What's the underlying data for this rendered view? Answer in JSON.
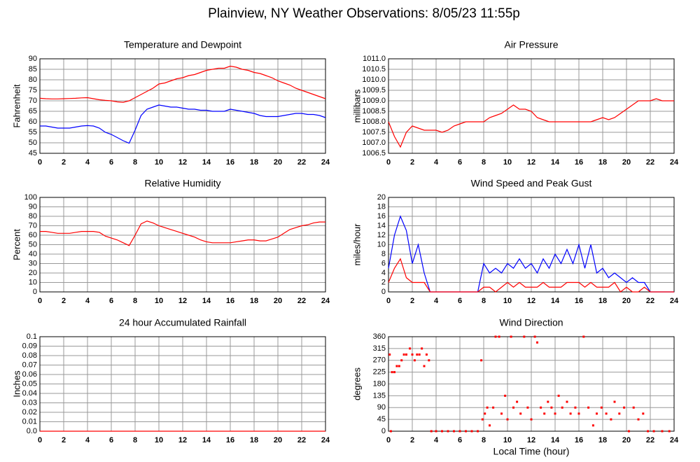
{
  "title": "Plainview, NY Weather Observations: 8/05/23 11:55p",
  "chart_data": [
    {
      "type": "line",
      "title": "Temperature and Dewpoint",
      "ylabel": "Fahrenheit",
      "grid": true,
      "xlim": [
        0,
        24
      ],
      "xticks": [
        0,
        2,
        4,
        6,
        8,
        10,
        12,
        14,
        16,
        18,
        20,
        22,
        24
      ],
      "ylim": [
        45,
        90
      ],
      "yticks": [
        45,
        50,
        55,
        60,
        65,
        70,
        75,
        80,
        85,
        90
      ],
      "x": [
        0,
        0.5,
        1,
        1.5,
        2,
        2.5,
        3,
        3.5,
        4,
        4.5,
        5,
        5.5,
        6,
        6.5,
        7,
        7.5,
        8,
        8.5,
        9,
        9.5,
        10,
        10.5,
        11,
        11.5,
        12,
        12.5,
        13,
        13.5,
        14,
        14.5,
        15,
        15.5,
        16,
        16.5,
        17,
        17.5,
        18,
        18.5,
        19,
        19.5,
        20,
        20.5,
        21,
        21.5,
        22,
        22.5,
        23,
        23.5,
        24
      ],
      "series": [
        {
          "color": "#ff0000",
          "values": [
            71.2,
            71,
            70.9,
            70.9,
            71,
            71.1,
            71.2,
            71.4,
            71.5,
            71,
            70.5,
            70.2,
            70,
            69.5,
            69.3,
            70,
            71.5,
            73,
            74.5,
            76,
            78,
            78.5,
            79.5,
            80.5,
            81,
            82,
            82.5,
            83.5,
            84.5,
            85,
            85.5,
            85.5,
            86.5,
            86,
            85,
            84.5,
            83.5,
            83,
            82,
            81,
            79.5,
            78.5,
            77.5,
            76,
            75,
            74,
            73,
            72,
            71
          ]
        },
        {
          "color": "#0000ff",
          "values": [
            58,
            58,
            57.5,
            57,
            57,
            57,
            57.5,
            58,
            58.2,
            58,
            57,
            55,
            54,
            52.5,
            51,
            49.8,
            56,
            63,
            66,
            67,
            68,
            67.5,
            67,
            67,
            66.5,
            66,
            66,
            65.5,
            65.5,
            65,
            65,
            65,
            66,
            65.5,
            65,
            64.5,
            64,
            63,
            62.5,
            62.5,
            62.5,
            63,
            63.5,
            64,
            64,
            63.5,
            63.5,
            63,
            62
          ]
        }
      ]
    },
    {
      "type": "line",
      "title": "Air Pressure",
      "ylabel": "millibars",
      "grid": true,
      "xlim": [
        0,
        24
      ],
      "xticks": [
        0,
        2,
        4,
        6,
        8,
        10,
        12,
        14,
        16,
        18,
        20,
        22,
        24
      ],
      "ylim": [
        1006.5,
        1011
      ],
      "yticks": [
        1006.5,
        {
          "value": 1007,
          "label": "1007.0"
        },
        1007.5,
        {
          "value": 1008,
          "label": "1008.0"
        },
        1008.5,
        {
          "value": 1009,
          "label": "1009.0"
        },
        1009.5,
        {
          "value": 1010,
          "label": "1010.0"
        },
        1010.5,
        {
          "value": 1011,
          "label": "1011.0"
        }
      ],
      "x": [
        0,
        0.5,
        1,
        1.5,
        2,
        2.5,
        3,
        3.5,
        4,
        4.5,
        5,
        5.5,
        6,
        6.5,
        7,
        7.5,
        8,
        8.5,
        9,
        9.5,
        10,
        10.5,
        11,
        11.5,
        12,
        12.5,
        13,
        13.5,
        14,
        14.5,
        15,
        15.5,
        16,
        16.5,
        17,
        17.5,
        18,
        18.5,
        19,
        19.5,
        20,
        20.5,
        21,
        21.5,
        22,
        22.5,
        23,
        23.5,
        24
      ],
      "series": [
        {
          "color": "#ff0000",
          "values": [
            1008,
            1007.3,
            1006.8,
            1007.5,
            1007.8,
            1007.7,
            1007.6,
            1007.6,
            1007.6,
            1007.5,
            1007.6,
            1007.8,
            1007.9,
            1008,
            1008,
            1008,
            1008,
            1008.2,
            1008.3,
            1008.4,
            1008.6,
            1008.8,
            1008.6,
            1008.6,
            1008.5,
            1008.2,
            1008.1,
            1008,
            1008,
            1008,
            1008,
            1008,
            1008,
            1008,
            1008,
            1008.1,
            1008.2,
            1008.1,
            1008.2,
            1008.4,
            1008.6,
            1008.8,
            1009,
            1009,
            1009,
            1009.1,
            1009,
            1009,
            1009
          ]
        }
      ]
    },
    {
      "type": "line",
      "title": "Relative Humidity",
      "ylabel": "Percent",
      "grid": true,
      "xlim": [
        0,
        24
      ],
      "xticks": [
        0,
        2,
        4,
        6,
        8,
        10,
        12,
        14,
        16,
        18,
        20,
        22,
        24
      ],
      "ylim": [
        0,
        100
      ],
      "yticks": [
        0,
        10,
        20,
        30,
        40,
        50,
        60,
        70,
        80,
        90,
        100
      ],
      "x": [
        0,
        0.5,
        1,
        1.5,
        2,
        2.5,
        3,
        3.5,
        4,
        4.5,
        5,
        5.5,
        6,
        6.5,
        7,
        7.5,
        8,
        8.5,
        9,
        9.5,
        10,
        10.5,
        11,
        11.5,
        12,
        12.5,
        13,
        13.5,
        14,
        14.5,
        15,
        15.5,
        16,
        16.5,
        17,
        17.5,
        18,
        18.5,
        19,
        19.5,
        20,
        20.5,
        21,
        21.5,
        22,
        22.5,
        23,
        23.5,
        24
      ],
      "series": [
        {
          "color": "#ff0000",
          "values": [
            64,
            64,
            63,
            62,
            62,
            62,
            63,
            64,
            64,
            64,
            63,
            59,
            57,
            55,
            52,
            49,
            60,
            72,
            75,
            73,
            70,
            68,
            66,
            64,
            62,
            60,
            58,
            55,
            53,
            52,
            52,
            52,
            52,
            53,
            54,
            55,
            55,
            54,
            54,
            56,
            58,
            62,
            66,
            68,
            70,
            71,
            73,
            74,
            74
          ]
        }
      ]
    },
    {
      "type": "line",
      "title": "Wind Speed and Peak Gust",
      "ylabel": "miles/hour",
      "grid": true,
      "xlim": [
        0,
        24
      ],
      "xticks": [
        0,
        2,
        4,
        6,
        8,
        10,
        12,
        14,
        16,
        18,
        20,
        22,
        24
      ],
      "ylim": [
        0,
        20
      ],
      "yticks": [
        0,
        2,
        4,
        6,
        8,
        10,
        12,
        14,
        16,
        18,
        20
      ],
      "x": [
        0,
        0.5,
        1,
        1.5,
        2,
        2.5,
        3,
        3.5,
        4,
        4.5,
        5,
        5.5,
        6,
        6.5,
        7,
        7.5,
        8,
        8.5,
        9,
        9.5,
        10,
        10.5,
        11,
        11.5,
        12,
        12.5,
        13,
        13.5,
        14,
        14.5,
        15,
        15.5,
        16,
        16.5,
        17,
        17.5,
        18,
        18.5,
        19,
        19.5,
        20,
        20.5,
        21,
        21.5,
        22,
        22.5,
        23,
        23.5,
        24
      ],
      "series": [
        {
          "color": "#0000ff",
          "values": [
            5,
            12,
            16,
            13,
            6,
            10,
            4,
            0,
            0,
            0,
            0,
            0,
            0,
            0,
            0,
            0,
            6,
            4,
            5,
            4,
            6,
            5,
            7,
            5,
            6,
            4,
            7,
            5,
            8,
            6,
            9,
            6,
            10,
            5,
            10,
            4,
            5,
            3,
            4,
            3,
            2,
            3,
            2,
            2,
            0,
            0,
            0,
            0,
            0
          ]
        },
        {
          "color": "#ff0000",
          "values": [
            2,
            5,
            7,
            3,
            2,
            2,
            2,
            0,
            0,
            0,
            0,
            0,
            0,
            0,
            0,
            0,
            1,
            1,
            0,
            1,
            2,
            1,
            2,
            1,
            1,
            1,
            2,
            1,
            1,
            1,
            2,
            2,
            2,
            1,
            2,
            1,
            1,
            1,
            2,
            0,
            1,
            0,
            0,
            1,
            0,
            0,
            0,
            0,
            0
          ]
        }
      ]
    },
    {
      "type": "line",
      "title": "24 hour Accumulated Rainfall",
      "ylabel": "Inches",
      "grid": true,
      "xlim": [
        0,
        24
      ],
      "xticks": [
        0,
        2,
        4,
        6,
        8,
        10,
        12,
        14,
        16,
        18,
        20,
        22,
        24
      ],
      "ylim": [
        0,
        0.1
      ],
      "yticks": [
        {
          "value": 0,
          "label": "0.0"
        },
        0.01,
        0.02,
        0.03,
        0.04,
        0.05,
        0.06,
        0.07,
        0.08,
        0.09,
        0.1
      ],
      "x": [
        0,
        24
      ],
      "series": [
        {
          "color": "#ff0000",
          "values": [
            0,
            0
          ]
        }
      ]
    },
    {
      "type": "scatter",
      "title": "Wind Direction",
      "ylabel": "degrees",
      "xlabel": "Local Time (hour)",
      "grid": true,
      "xlim": [
        0,
        24
      ],
      "xticks": [
        0,
        2,
        4,
        6,
        8,
        10,
        12,
        14,
        16,
        18,
        20,
        22,
        24
      ],
      "ylim": [
        0,
        360
      ],
      "yticks": [
        0,
        45,
        90,
        135,
        180,
        225,
        270,
        315,
        360
      ],
      "x": [
        0.1,
        0.3,
        0.5,
        0.7,
        0.9,
        1.1,
        1.3,
        1.5,
        1.8,
        2.0,
        2.2,
        2.4,
        2.6,
        2.8,
        3.0,
        3.2,
        3.4,
        0.2,
        3.6,
        4.0,
        4.5,
        5,
        5.5,
        6,
        6.5,
        7,
        7.5,
        7.8,
        7.9,
        8.1,
        8.3,
        8.5,
        8.8,
        9.0,
        9.3,
        9.5,
        9.8,
        10.0,
        10.3,
        10.5,
        10.8,
        11.1,
        11.4,
        11.7,
        12.0,
        12.3,
        12.5,
        12.8,
        13.1,
        13.4,
        13.7,
        14.0,
        14.3,
        14.6,
        15.0,
        15.3,
        15.7,
        16.0,
        16.4,
        16.8,
        17.2,
        17.5,
        17.9,
        18.3,
        18.7,
        19.0,
        19.4,
        19.8,
        20.2,
        20.6,
        21.0,
        21.4,
        21.8,
        22.3,
        23,
        23.6
      ],
      "series": [
        {
          "color": "#ff0000",
          "values": [
            292,
            225,
            225,
            248,
            248,
            270,
            292,
            292,
            315,
            292,
            270,
            292,
            292,
            315,
            248,
            292,
            270,
            0,
            0,
            0,
            0,
            0,
            0,
            0,
            0,
            0,
            0,
            270,
            45,
            67,
            90,
            22,
            90,
            360,
            360,
            67,
            135,
            45,
            360,
            90,
            112,
            67,
            360,
            90,
            45,
            360,
            338,
            90,
            67,
            112,
            90,
            67,
            135,
            90,
            112,
            67,
            90,
            67,
            360,
            90,
            22,
            67,
            90,
            67,
            45,
            112,
            67,
            90,
            0,
            90,
            45,
            67,
            0,
            0,
            0,
            0
          ]
        }
      ]
    }
  ]
}
